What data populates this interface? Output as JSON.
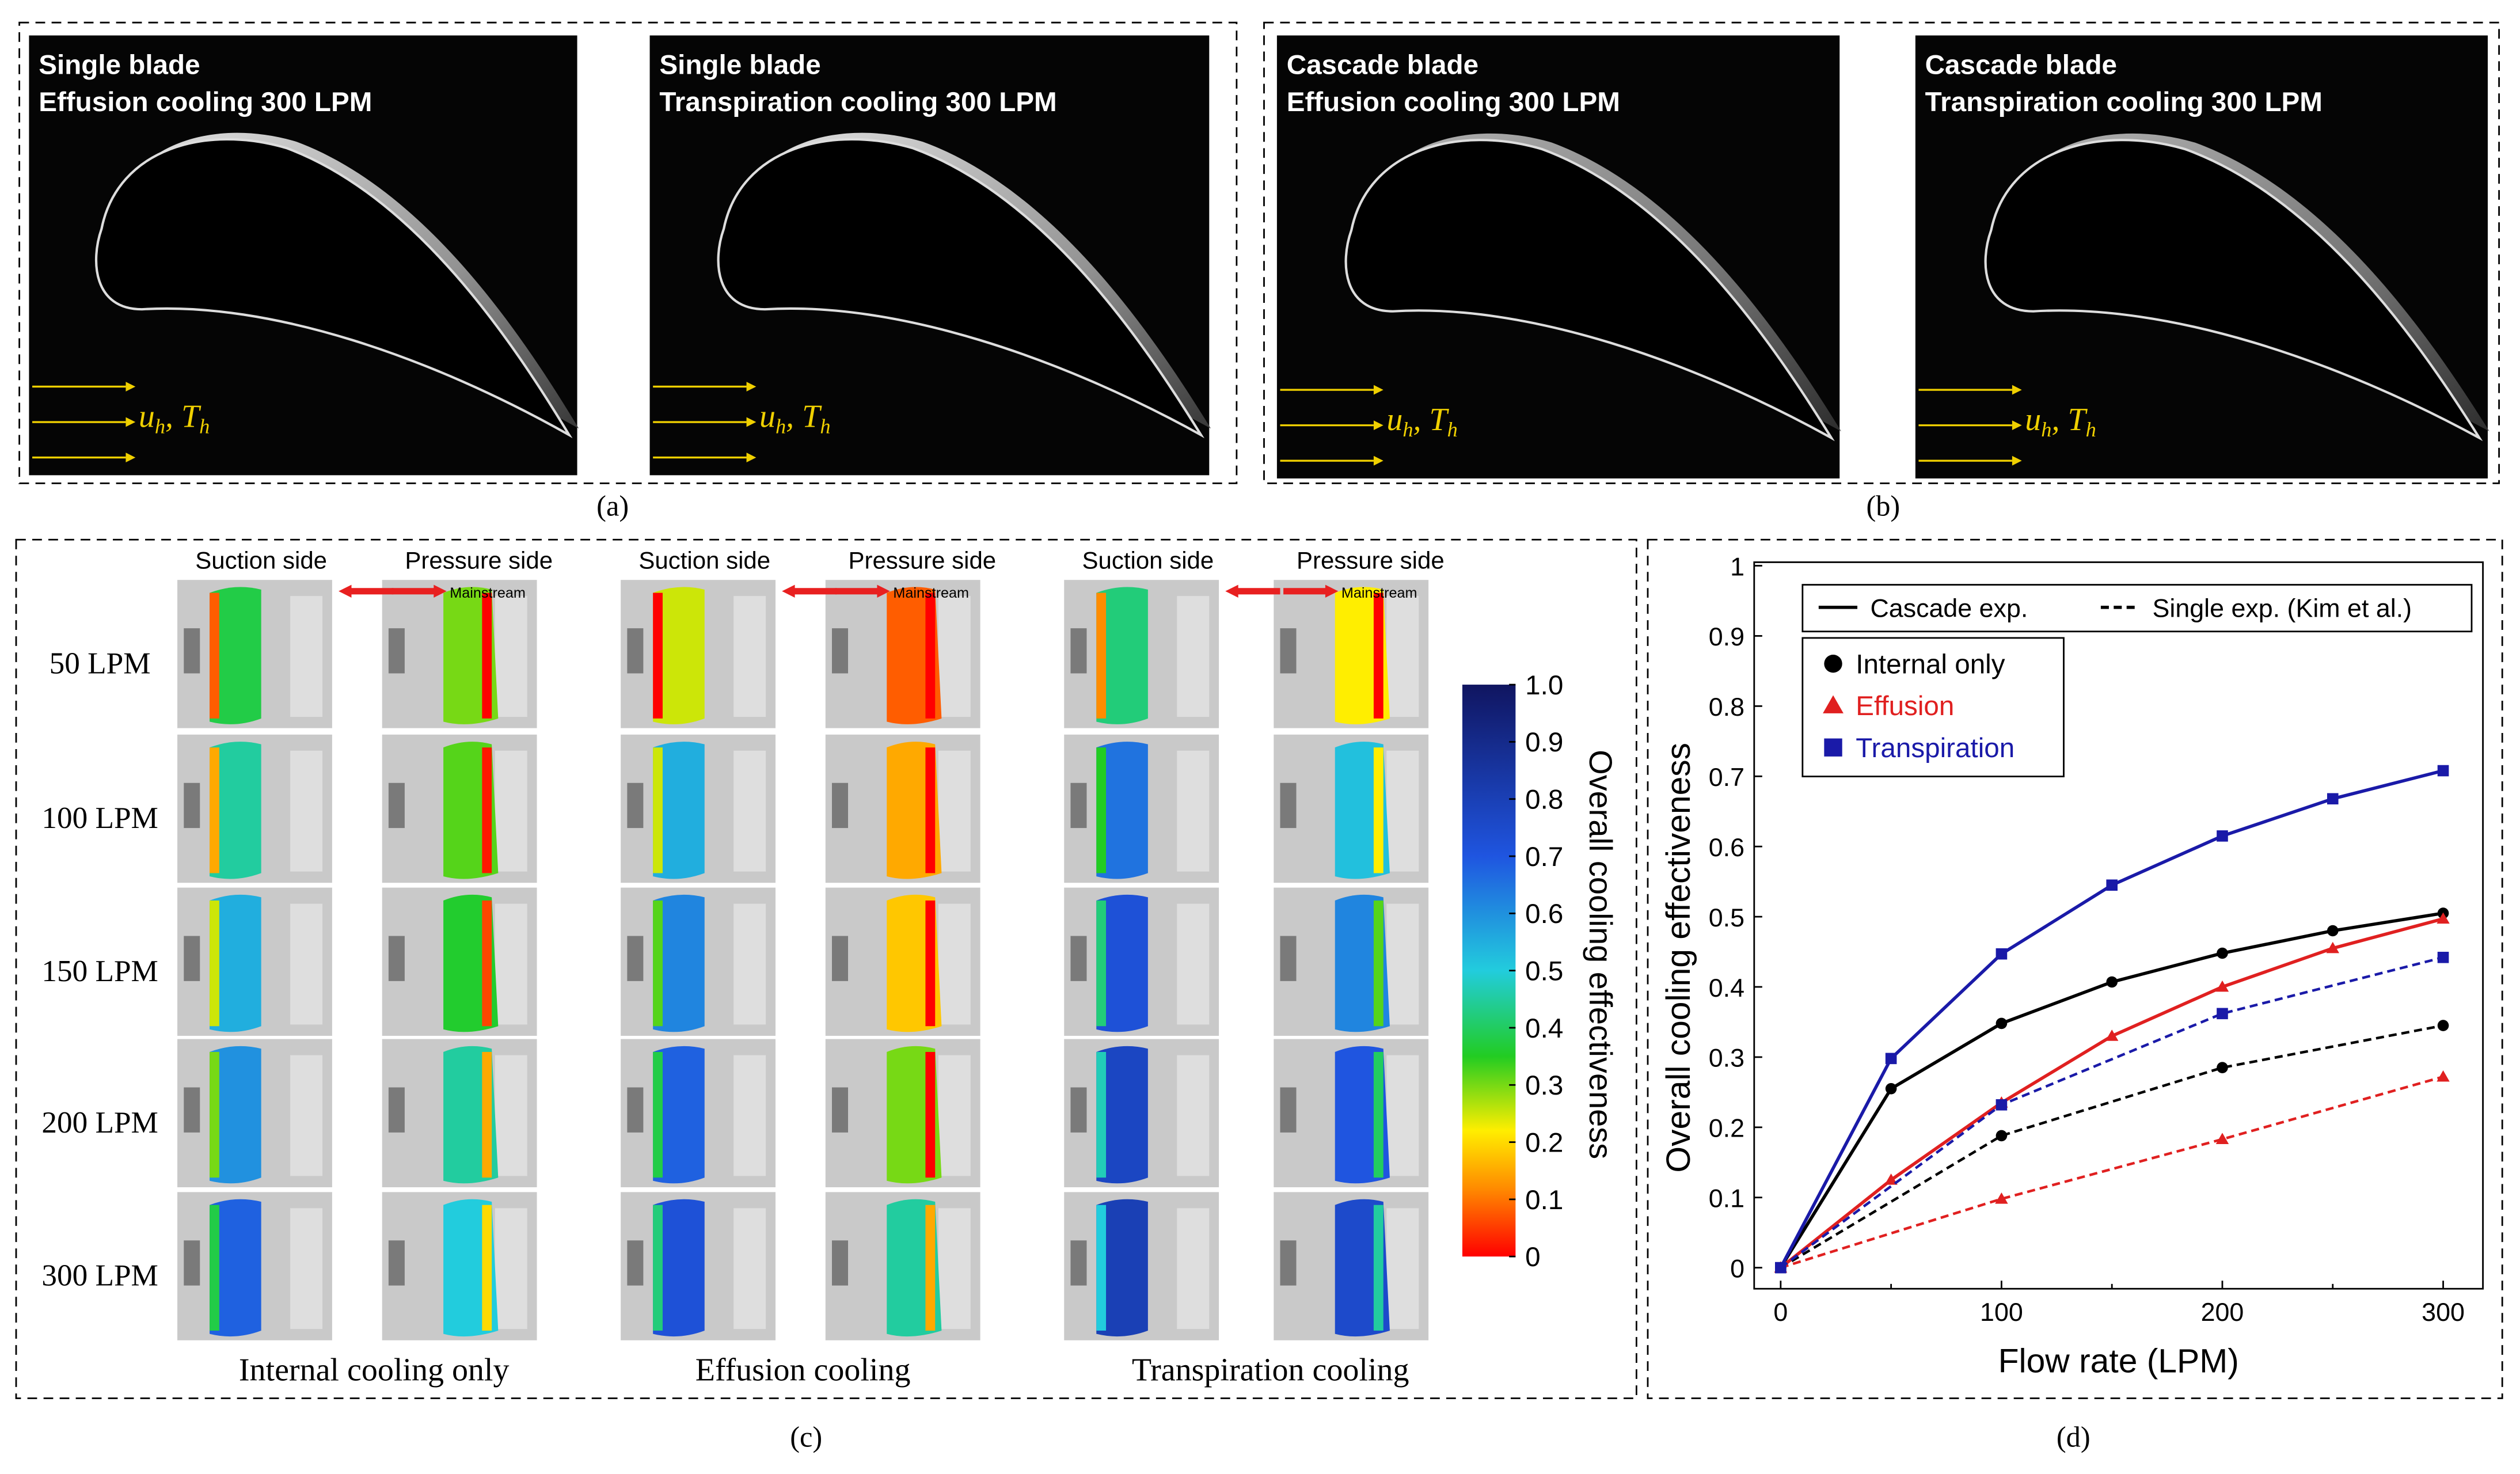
{
  "photos": [
    {
      "line1": "Single blade",
      "line2": "Effusion cooling 300 LPM"
    },
    {
      "line1": "Single blade",
      "line2": "Transpiration cooling 300 LPM"
    },
    {
      "line1": "Cascade blade",
      "line2": "Effusion cooling 300 LPM"
    },
    {
      "line1": "Cascade blade",
      "line2": "Transpiration cooling 300 LPM"
    }
  ],
  "flow_label": [
    "u",
    "h",
    ", T",
    "h"
  ],
  "captions": [
    "(a)",
    "(b)",
    "(c)",
    "(d)"
  ],
  "thermal": {
    "column_headers": [
      "Suction side",
      "Pressure side",
      "Suction side",
      "Pressure side",
      "Suction side",
      "Pressure side"
    ],
    "mainstream": "Mainstream",
    "rows": [
      "50 LPM",
      "100 LPM",
      "150 LPM",
      "200 LPM",
      "300 LPM"
    ],
    "groups": [
      "Internal cooling only",
      "Effusion cooling",
      "Transpiration cooling"
    ],
    "colorbar": {
      "label": "Overall cooling effectiveness",
      "lim": [
        0,
        1
      ],
      "ticks": [
        0,
        0.1,
        0.2,
        0.3,
        0.4,
        0.5,
        0.6,
        0.7,
        0.8,
        0.9,
        {
          "value": 1,
          "label": "1.0"
        }
      ]
    }
  },
  "chart_data": {
    "type": "line",
    "xlabel": "Flow rate (LPM)",
    "ylabel": "Overall cooling effectiveness",
    "xlim": [
      -12,
      318
    ],
    "ylim": [
      -0.03,
      1.005
    ],
    "xticks": [
      0,
      100,
      200,
      300
    ],
    "xminor_ticks": [
      50,
      150,
      250
    ],
    "yticks": [
      0,
      0.1,
      0.2,
      0.3,
      0.4,
      0.5,
      0.6,
      0.7,
      0.8,
      0.9,
      1
    ],
    "line_legend": [
      {
        "name": "Cascade exp.",
        "linestyle": "solid"
      },
      {
        "name": "Single exp. (Kim et al.)",
        "linestyle": "dashed"
      }
    ],
    "marker_legend": [
      {
        "name": "Internal only",
        "color": "#000000",
        "marker": "circle"
      },
      {
        "name": "Effusion",
        "color": "#e02020",
        "marker": "triangle"
      },
      {
        "name": "Transpiration",
        "color": "#1a1aa8",
        "marker": "square"
      }
    ],
    "series": [
      {
        "color": "#000000",
        "marker": "circle",
        "linestyle": "solid",
        "x": [
          0,
          50,
          100,
          150,
          200,
          250,
          300
        ],
        "values": [
          0,
          0.255,
          0.348,
          0.407,
          0.448,
          0.48,
          0.505
        ]
      },
      {
        "color": "#e02020",
        "marker": "triangle",
        "linestyle": "solid",
        "x": [
          0,
          50,
          100,
          150,
          200,
          250,
          300
        ],
        "values": [
          0,
          0.125,
          0.235,
          0.33,
          0.4,
          0.455,
          0.497
        ]
      },
      {
        "color": "#1a1aa8",
        "marker": "square",
        "linestyle": "solid",
        "x": [
          0,
          50,
          100,
          150,
          200,
          250,
          300
        ],
        "values": [
          0,
          0.298,
          0.447,
          0.545,
          0.615,
          0.668,
          0.708
        ]
      },
      {
        "color": "#000000",
        "marker": "circle",
        "linestyle": "dashed",
        "x": [
          0,
          100,
          200,
          300
        ],
        "values": [
          0,
          0.188,
          0.285,
          0.345
        ]
      },
      {
        "color": "#e02020",
        "marker": "triangle",
        "linestyle": "dashed",
        "x": [
          0,
          100,
          200,
          300
        ],
        "values": [
          0,
          0.098,
          0.183,
          0.272
        ]
      },
      {
        "color": "#1a1aa8",
        "marker": "square",
        "linestyle": "dashed",
        "x": [
          0,
          100,
          200,
          300
        ],
        "values": [
          0,
          0.232,
          0.362,
          0.442
        ]
      }
    ]
  }
}
